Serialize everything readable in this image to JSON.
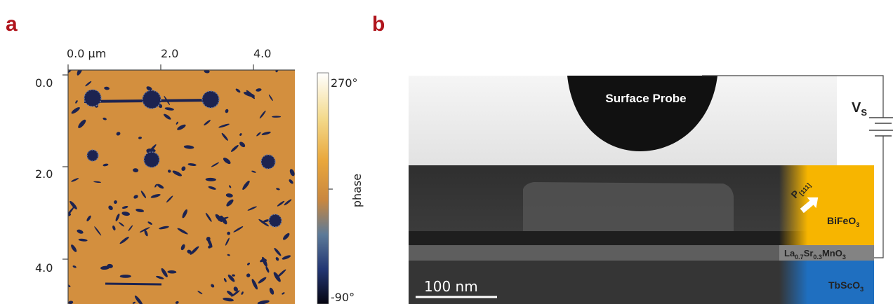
{
  "panel_a": {
    "label": "a",
    "x_axis_labels": [
      "0.0 µm",
      "2.0",
      "4.0"
    ],
    "y_axis_labels": [
      "0.0",
      "2.0",
      "4.0"
    ],
    "colorbar": {
      "max_label": "270°",
      "min_label": "-90°",
      "title": "phase"
    }
  },
  "panel_b": {
    "label": "b",
    "probe_label": "Surface Probe",
    "voltage": {
      "symbol": "V",
      "subscript": "S"
    },
    "polarization": {
      "symbol": "P",
      "subscript": "[111]"
    },
    "layers": [
      {
        "parts": [
          "BiFeO",
          "3"
        ]
      },
      {
        "parts": [
          "La",
          "0.7",
          "Sr",
          "0.3",
          "MnO",
          "3"
        ]
      },
      {
        "parts": [
          "TbScO",
          "3"
        ]
      }
    ],
    "scale_bar": "100 nm"
  }
}
